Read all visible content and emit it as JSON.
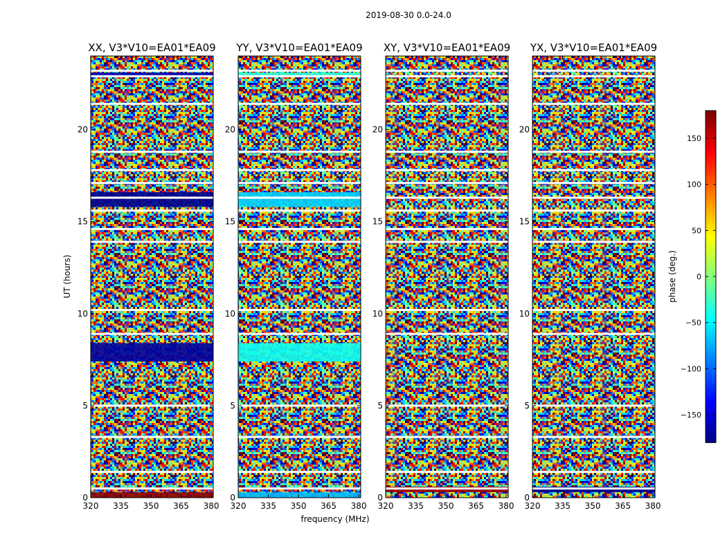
{
  "chart_data": {
    "type": "heatmap",
    "title": "2019-08-30 0.0-24.0",
    "xlabel": "frequency (MHz)",
    "ylabel": "UT (hours)",
    "xlim": [
      320,
      381
    ],
    "ylim": [
      0,
      24
    ],
    "xticks": [
      "320",
      "335",
      "350",
      "365",
      "380"
    ],
    "yticks": [
      "0",
      "5",
      "10",
      "15",
      "20"
    ],
    "panels": [
      {
        "title": "XX, V3*V10=EA01*EA09",
        "polarization": "XX",
        "bands": [
          {
            "t0": 0.0,
            "t1": 0.3,
            "phase": 175
          },
          {
            "t0": 7.4,
            "t1": 8.4,
            "phase": -170
          },
          {
            "t0": 15.8,
            "t1": 16.6,
            "phase": -175
          },
          {
            "t0": 22.9,
            "t1": 23.1,
            "phase": -160
          }
        ]
      },
      {
        "title": "YY, V3*V10=EA01*EA09",
        "polarization": "YY",
        "bands": [
          {
            "t0": 0.0,
            "t1": 0.3,
            "phase": -70
          },
          {
            "t0": 7.4,
            "t1": 8.4,
            "phase": -40
          },
          {
            "t0": 15.8,
            "t1": 16.6,
            "phase": -60
          },
          {
            "t0": 22.9,
            "t1": 23.1,
            "phase": -30
          }
        ]
      },
      {
        "title": "XY, V3*V10=EA01*EA09",
        "polarization": "XY",
        "bands": [
          {
            "t0": 0.3,
            "t1": 0.6,
            "phase": 170
          }
        ]
      },
      {
        "title": "YX, V3*V10=EA01*EA09",
        "polarization": "YX",
        "bands": [
          {
            "t0": 0.3,
            "t1": 0.6,
            "phase": -175
          }
        ]
      }
    ],
    "flagged_rows_hours": [
      0.5,
      1.4,
      3.3,
      5.0,
      8.9,
      10.2,
      13.9,
      14.6,
      15.6,
      16.3,
      17.1,
      17.8,
      18.8,
      21.4,
      22.9,
      23.2
    ],
    "colorbar": {
      "label": "phase (deg.)",
      "range": [
        -180,
        180
      ],
      "ticks": [
        "150",
        "100",
        "50",
        "0",
        "−50",
        "−100",
        "−150"
      ],
      "tick_values": [
        150,
        100,
        50,
        0,
        -50,
        -100,
        -150
      ],
      "colormap": "jet"
    }
  }
}
